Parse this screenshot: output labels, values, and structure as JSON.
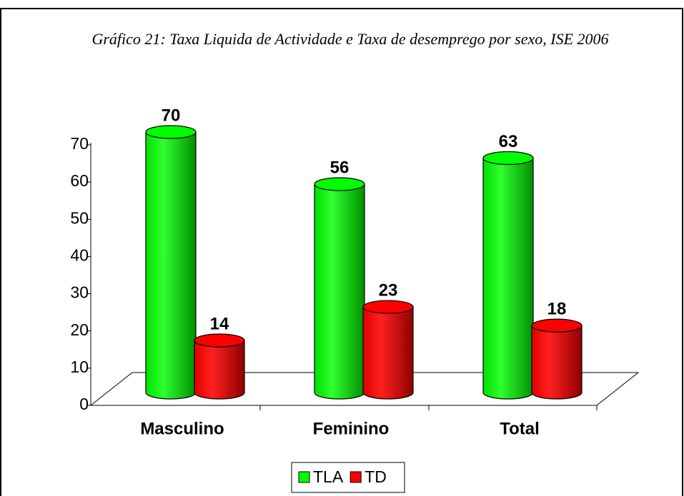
{
  "chart_data": {
    "type": "bar",
    "title": "Gráfico 21: Taxa Liquida de Actividade e Taxa de desemprego   por sexo, ISE 2006",
    "categories": [
      "Masculino",
      "Feminino",
      "Total"
    ],
    "series": [
      {
        "name": "TLA",
        "color": "#00ff00",
        "values": [
          70,
          56,
          63
        ]
      },
      {
        "name": "TD",
        "color": "#ff0000",
        "values": [
          14,
          23,
          18
        ]
      }
    ],
    "ylim": [
      0,
      70
    ],
    "yticks": [
      0,
      10,
      20,
      30,
      40,
      50,
      60,
      70
    ],
    "legend": "bottom"
  }
}
